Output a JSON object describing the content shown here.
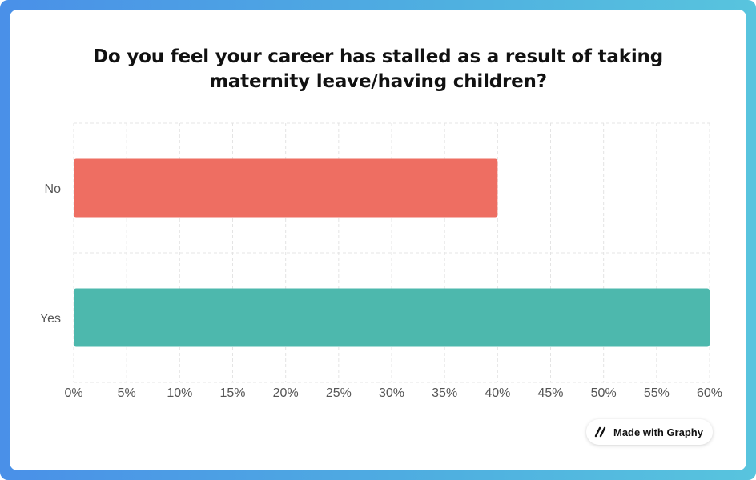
{
  "chart_data": {
    "type": "bar",
    "orientation": "horizontal",
    "title": "Do you feel your career has stalled as a result of taking maternity leave/having children?",
    "categories": [
      "No",
      "Yes"
    ],
    "values": [
      40,
      60
    ],
    "bar_colors": [
      "#ee6e62",
      "#4db8ad"
    ],
    "xlim": [
      0,
      60
    ],
    "x_ticks": [
      "0%",
      "5%",
      "10%",
      "15%",
      "20%",
      "25%",
      "30%",
      "35%",
      "40%",
      "45%",
      "50%",
      "55%",
      "60%"
    ],
    "x_tick_values": [
      0,
      5,
      10,
      15,
      20,
      25,
      30,
      35,
      40,
      45,
      50,
      55,
      60
    ],
    "grid": true,
    "grid_style": "dashed",
    "legend": false
  },
  "badge": {
    "label": "Made with Graphy",
    "icon": "graphy-logo-icon"
  },
  "colors": {
    "frame_gradient_start": "#4a90e8",
    "frame_gradient_end": "#58c4de",
    "card_background": "#ffffff",
    "tick_label": "#555555",
    "grid": "#e4e4e4"
  }
}
